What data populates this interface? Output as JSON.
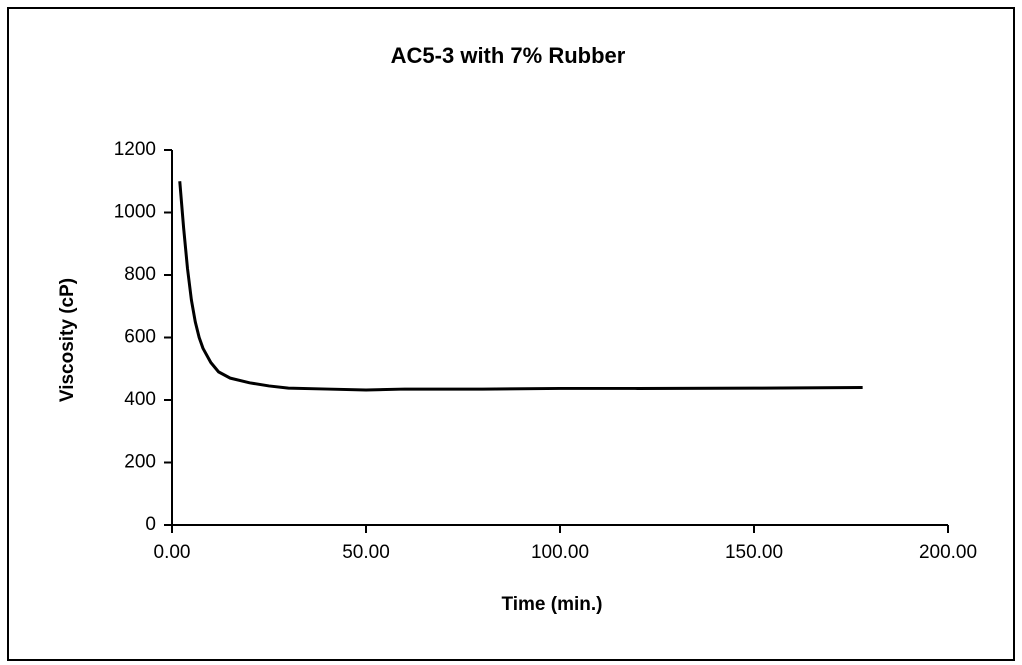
{
  "chart_data": {
    "type": "line",
    "title": "AC5-3 with 7% Rubber",
    "x_label": "Time (min.)",
    "y_label": "Viscosity (cP)",
    "series": [
      {
        "name": "Viscosity",
        "color": "#000000",
        "x": [
          2,
          3,
          4,
          5,
          6,
          7,
          8,
          10,
          12,
          15,
          20,
          25,
          30,
          40,
          50,
          60,
          80,
          100,
          120,
          150,
          178
        ],
        "values": [
          1100,
          950,
          820,
          720,
          650,
          600,
          565,
          520,
          490,
          470,
          455,
          445,
          438,
          435,
          432,
          435,
          435,
          437,
          437,
          438,
          440
        ]
      }
    ],
    "xlim": [
      0,
      200
    ],
    "xticks": [
      {
        "value": 0,
        "label": "0.00"
      },
      {
        "value": 50,
        "label": "50.00"
      },
      {
        "value": 100,
        "label": "100.00"
      },
      {
        "value": 150,
        "label": "150.00"
      },
      {
        "value": 200,
        "label": "200.00"
      }
    ],
    "ylim": [
      0,
      1200
    ],
    "yticks": [
      0,
      200,
      400,
      600,
      800,
      1000,
      1200
    ],
    "grid": false
  }
}
